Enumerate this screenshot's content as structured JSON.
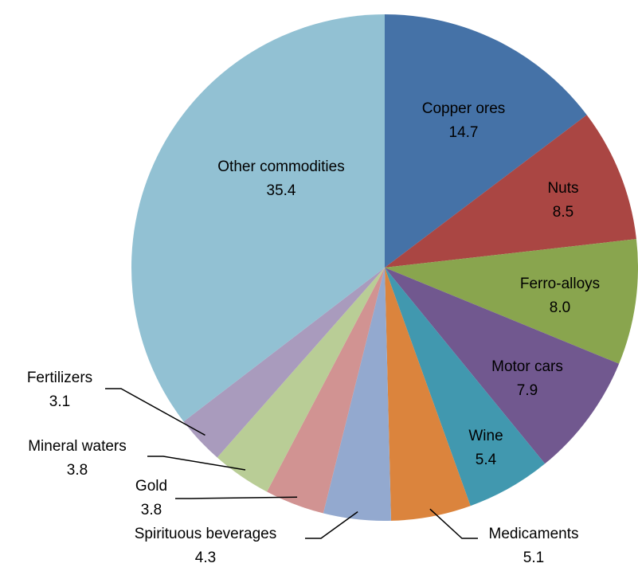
{
  "chart_data": {
    "type": "pie",
    "categories": [
      "Copper ores",
      "Nuts",
      "Ferro-alloys",
      "Motor cars",
      "Wine",
      "Medicaments",
      "Spirituous beverages",
      "Gold",
      "Mineral waters",
      "Fertilizers",
      "Other commodities"
    ],
    "values": [
      14.7,
      8.5,
      8.0,
      7.9,
      5.4,
      5.1,
      4.3,
      3.8,
      3.8,
      3.1,
      35.4
    ],
    "value_labels": [
      "14.7",
      "8.5",
      "8.0",
      "7.9",
      "5.4",
      "5.1",
      "4.3",
      "3.8",
      "3.8",
      "3.1",
      "35.4"
    ],
    "colors": [
      "#4572a7",
      "#aa4643",
      "#89a54e",
      "#71588f",
      "#4198af",
      "#db843d",
      "#93a9cf",
      "#d19392",
      "#b9cd96",
      "#a99bbd",
      "#92c1d3"
    ]
  }
}
